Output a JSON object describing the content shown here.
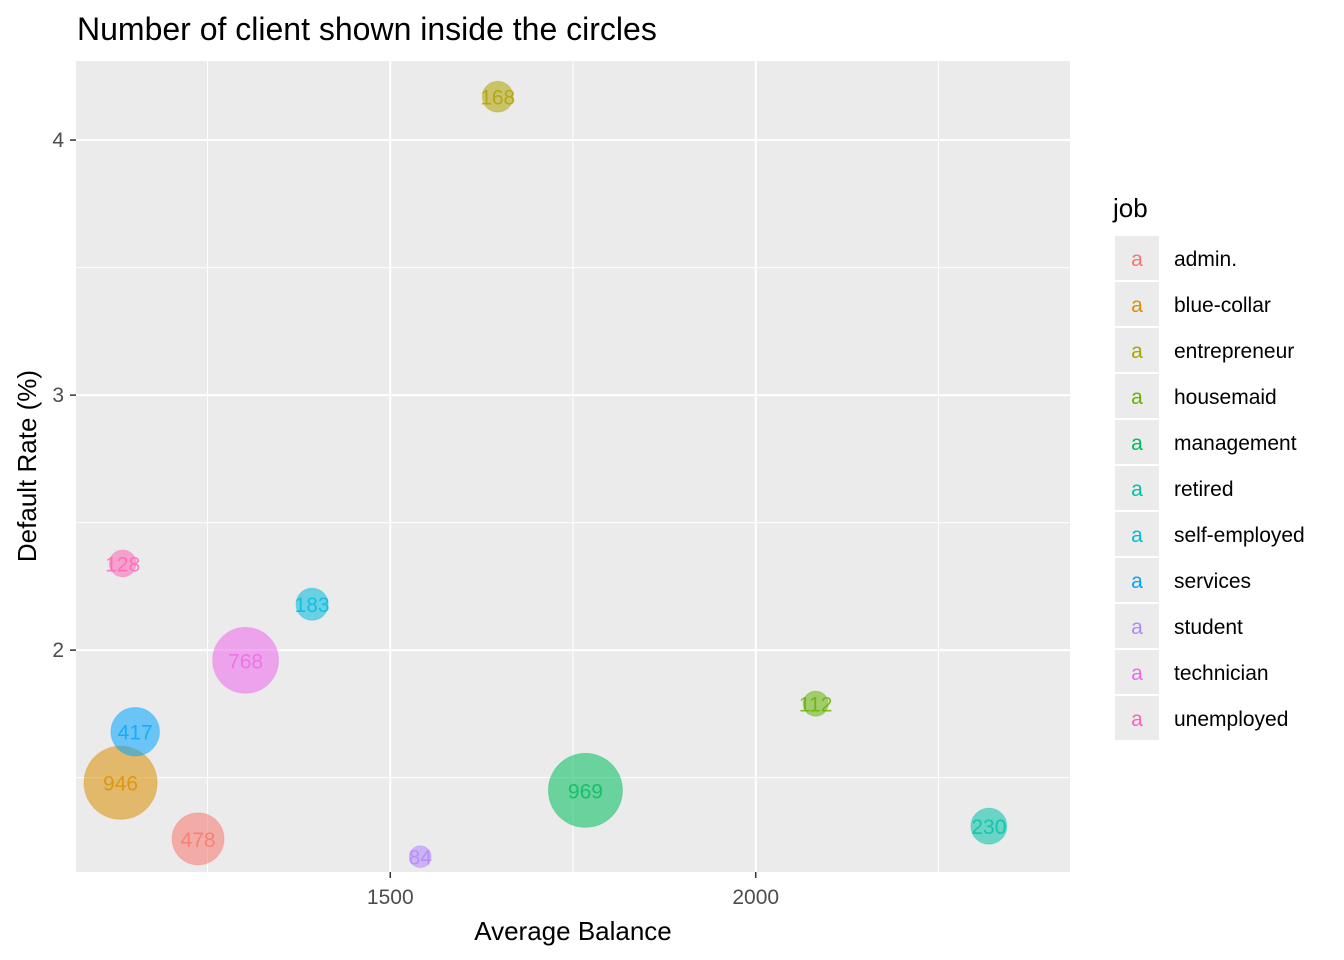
{
  "chart_data": {
    "type": "scatter",
    "title": "Number of client shown inside the circles",
    "xlabel": "Average Balance",
    "ylabel": "Default Rate (%)",
    "xlim": [
      1070,
      2430
    ],
    "ylim": [
      1.13,
      4.31
    ],
    "x_ticks": [
      1500,
      2000
    ],
    "y_ticks": [
      2,
      3,
      4
    ],
    "x_tick_labels": [
      "1500",
      "2000"
    ],
    "y_tick_labels": [
      "2",
      "3",
      "4"
    ],
    "grid": true,
    "legend": {
      "title": "job",
      "position": "right",
      "key_glyph": "a"
    },
    "size_encodes": "number of clients",
    "points": [
      {
        "job": "admin.",
        "x": 1237,
        "y": 1.26,
        "count": 478,
        "label": "478",
        "color": "#F8766D"
      },
      {
        "job": "blue-collar",
        "x": 1131,
        "y": 1.48,
        "count": 946,
        "label": "946",
        "color": "#DB8E00"
      },
      {
        "job": "entrepreneur",
        "x": 1647,
        "y": 4.17,
        "count": 168,
        "label": "168",
        "color": "#AEA200"
      },
      {
        "job": "housemaid",
        "x": 2082,
        "y": 1.79,
        "count": 112,
        "label": "112",
        "color": "#64B200"
      },
      {
        "job": "management",
        "x": 1767,
        "y": 1.45,
        "count": 969,
        "label": "969",
        "color": "#00BD5C"
      },
      {
        "job": "retired",
        "x": 2319,
        "y": 1.31,
        "count": 230,
        "label": "230",
        "color": "#00C1A7"
      },
      {
        "job": "self-employed",
        "x": 1393,
        "y": 2.18,
        "count": 183,
        "label": "183",
        "color": "#00BADE"
      },
      {
        "job": "services",
        "x": 1151,
        "y": 1.68,
        "count": 417,
        "label": "417",
        "color": "#00A6FF"
      },
      {
        "job": "student",
        "x": 1541,
        "y": 1.19,
        "count": 84,
        "label": "84",
        "color": "#B385FF"
      },
      {
        "job": "technician",
        "x": 1302,
        "y": 1.96,
        "count": 768,
        "label": "768",
        "color": "#EF67EB"
      },
      {
        "job": "unemployed",
        "x": 1134,
        "y": 2.34,
        "count": 128,
        "label": "128",
        "color": "#FF63B6"
      }
    ]
  }
}
